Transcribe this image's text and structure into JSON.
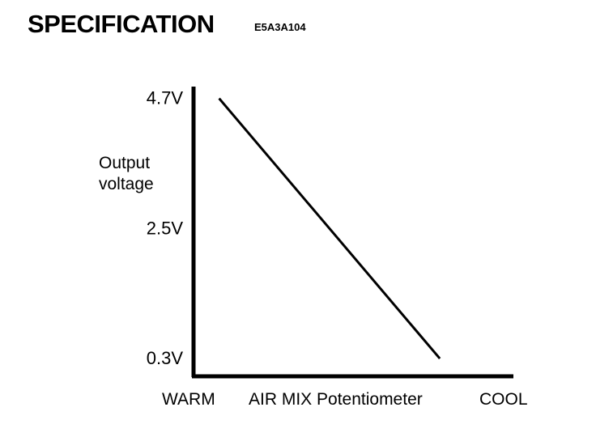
{
  "header": {
    "title": "SPECIFICATION",
    "code": "E5A3A104"
  },
  "chart_data": {
    "type": "line",
    "ylabel_lines": [
      "Output",
      "voltage"
    ],
    "xlabel": "AIR MIX Potentiometer",
    "x_start_label": "WARM",
    "x_end_label": "COOL",
    "ytick_labels": [
      "4.7V",
      "2.5V",
      "0.3V"
    ],
    "yticks": [
      4.7,
      2.5,
      0.3
    ],
    "series": [
      {
        "x": [
          0.08,
          0.77
        ],
        "y": [
          4.7,
          0.3
        ]
      }
    ],
    "xlim": [
      0,
      1
    ],
    "ylim": [
      0,
      4.9
    ],
    "grid": false,
    "line_color": "#000000"
  }
}
